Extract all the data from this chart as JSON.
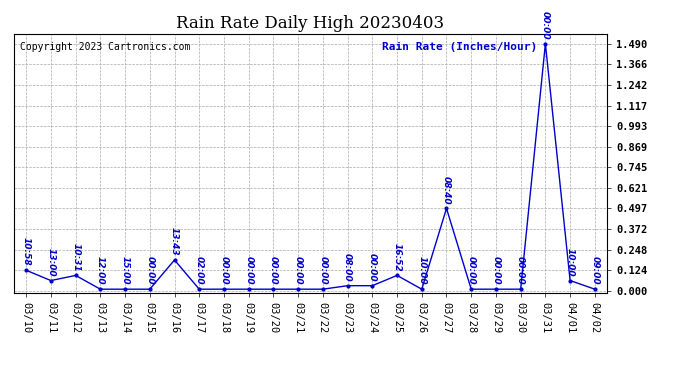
{
  "title": "Rain Rate Daily High 20230403",
  "ylabel": "Rain Rate (Inches/Hour)",
  "copyright": "Copyright 2023 Cartronics.com",
  "line_color": "#0000CC",
  "background_color": "#ffffff",
  "grid_color": "#aaaaaa",
  "dates": [
    "03/10",
    "03/11",
    "03/12",
    "03/13",
    "03/14",
    "03/15",
    "03/16",
    "03/17",
    "03/18",
    "03/19",
    "03/20",
    "03/21",
    "03/22",
    "03/23",
    "03/24",
    "03/25",
    "03/26",
    "03/27",
    "03/28",
    "03/29",
    "03/30",
    "03/31",
    "04/01",
    "04/02"
  ],
  "values": [
    0.124,
    0.062,
    0.093,
    0.01,
    0.01,
    0.01,
    0.186,
    0.01,
    0.01,
    0.01,
    0.01,
    0.01,
    0.01,
    0.031,
    0.031,
    0.093,
    0.01,
    0.497,
    0.01,
    0.01,
    0.01,
    1.49,
    0.062,
    0.01
  ],
  "time_labels": [
    "10:58",
    "13:00",
    "10:31",
    "12:00",
    "15:00",
    "00:00",
    "13:43",
    "02:00",
    "00:00",
    "00:00",
    "00:00",
    "00:00",
    "00:00",
    "08:00",
    "00:00",
    "16:52",
    "10:00",
    "08:40",
    "00:00",
    "00:00",
    "00:00",
    "00:00",
    "10:00",
    "09:00"
  ],
  "yticks": [
    0.0,
    0.124,
    0.248,
    0.372,
    0.497,
    0.621,
    0.745,
    0.869,
    0.993,
    1.117,
    1.242,
    1.366,
    1.49
  ],
  "ylim": [
    -0.01,
    1.55
  ],
  "title_fontsize": 12,
  "label_fontsize": 8,
  "tick_fontsize": 7.5,
  "copyright_fontsize": 7,
  "time_label_fontsize": 6.5
}
